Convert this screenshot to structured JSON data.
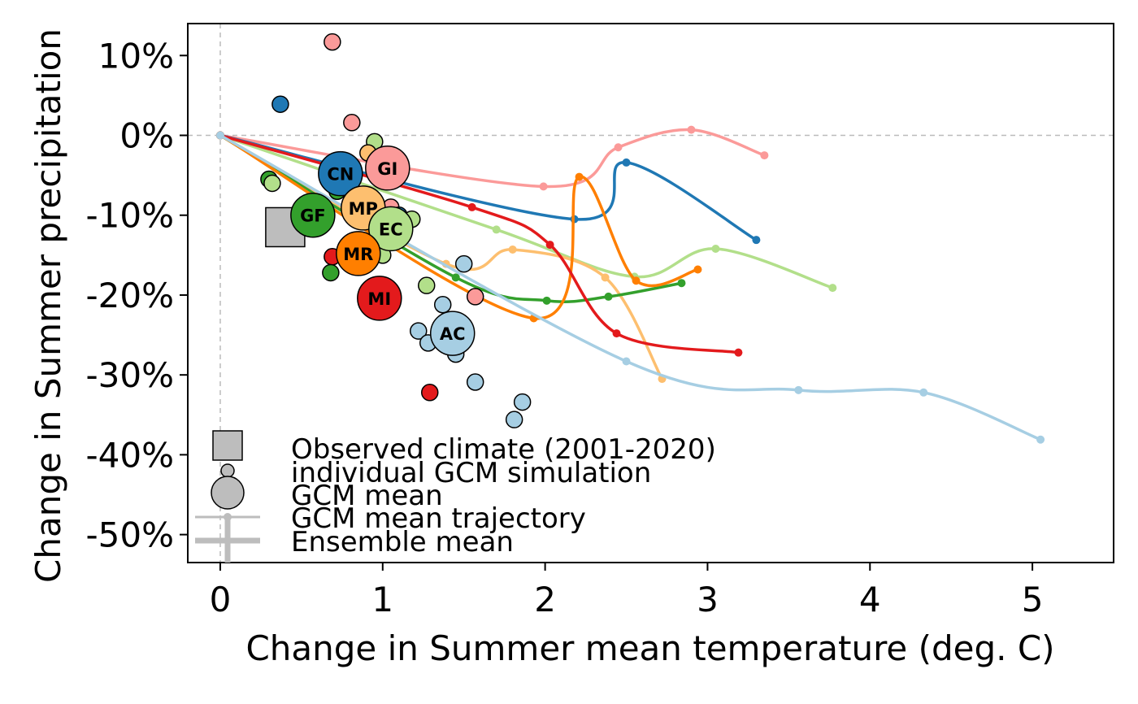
{
  "chart_data": {
    "type": "scatter",
    "xlabel": "Change in Summer mean temperature (deg. C)",
    "ylabel": "Change in Summer precipitation",
    "xlim": [
      -0.2,
      5.5
    ],
    "ylim": [
      -0.535,
      0.14
    ],
    "x_ticks": [
      0,
      1,
      2,
      3,
      4,
      5
    ],
    "x_tick_labels": [
      "0",
      "1",
      "2",
      "3",
      "4",
      "5"
    ],
    "y_ticks": [
      0.1,
      0,
      -0.1,
      -0.2,
      -0.3,
      -0.4,
      -0.5
    ],
    "y_tick_labels": [
      "10%",
      "0%",
      "-10%",
      "-20%",
      "-30%",
      "-40%",
      "-50%"
    ],
    "reference_lines": {
      "x": 0,
      "y": 0,
      "style": "dashed",
      "color": "#bbbbbb"
    },
    "observed": {
      "x": 0.4,
      "y": -0.115,
      "color": "#bdbdbd"
    },
    "individual_simulations": [
      {
        "x": 0.69,
        "y": 0.117,
        "color": "#fb9a99"
      },
      {
        "x": 0.37,
        "y": 0.039,
        "color": "#1f78b4"
      },
      {
        "x": 0.81,
        "y": 0.016,
        "color": "#fb9a99"
      },
      {
        "x": 0.95,
        "y": -0.008,
        "color": "#b2df8a"
      },
      {
        "x": 0.91,
        "y": -0.022,
        "color": "#fdbf6f"
      },
      {
        "x": 0.3,
        "y": -0.055,
        "color": "#33a02c"
      },
      {
        "x": 0.32,
        "y": -0.06,
        "color": "#b2df8a"
      },
      {
        "x": 0.72,
        "y": -0.07,
        "color": "#33a02c"
      },
      {
        "x": 1.05,
        "y": -0.09,
        "color": "#fb9a99"
      },
      {
        "x": 1.1,
        "y": -0.1,
        "color": "#1f78b4"
      },
      {
        "x": 1.18,
        "y": -0.105,
        "color": "#b2df8a"
      },
      {
        "x": 0.69,
        "y": -0.152,
        "color": "#e31a1c"
      },
      {
        "x": 1.0,
        "y": -0.15,
        "color": "#b2df8a"
      },
      {
        "x": 0.68,
        "y": -0.172,
        "color": "#33a02c"
      },
      {
        "x": 1.5,
        "y": -0.161,
        "color": "#a6cee3"
      },
      {
        "x": 1.27,
        "y": -0.188,
        "color": "#b2df8a"
      },
      {
        "x": 1.57,
        "y": -0.202,
        "color": "#fb9a99"
      },
      {
        "x": 1.37,
        "y": -0.212,
        "color": "#a6cee3"
      },
      {
        "x": 1.22,
        "y": -0.245,
        "color": "#a6cee3"
      },
      {
        "x": 1.28,
        "y": -0.26,
        "color": "#a6cee3"
      },
      {
        "x": 1.45,
        "y": -0.274,
        "color": "#a6cee3"
      },
      {
        "x": 1.57,
        "y": -0.309,
        "color": "#a6cee3"
      },
      {
        "x": 1.29,
        "y": -0.322,
        "color": "#e31a1c"
      },
      {
        "x": 1.86,
        "y": -0.334,
        "color": "#a6cee3"
      },
      {
        "x": 1.81,
        "y": -0.356,
        "color": "#a6cee3"
      }
    ],
    "gcm_means": [
      {
        "label": "CN",
        "x": 0.74,
        "y": -0.048,
        "color": "#1f78b4"
      },
      {
        "label": "GI",
        "x": 1.03,
        "y": -0.041,
        "color": "#fb9a99"
      },
      {
        "label": "MP",
        "x": 0.88,
        "y": -0.091,
        "color": "#fdbf6f"
      },
      {
        "label": "GF",
        "x": 0.57,
        "y": -0.1,
        "color": "#33a02c"
      },
      {
        "label": "EC",
        "x": 1.05,
        "y": -0.117,
        "color": "#b2df8a"
      },
      {
        "label": "MR",
        "x": 0.85,
        "y": -0.148,
        "color": "#ff7f00"
      },
      {
        "label": "MI",
        "x": 0.98,
        "y": -0.204,
        "color": "#e31a1c"
      },
      {
        "label": "AC",
        "x": 1.43,
        "y": -0.248,
        "color": "#a6cee3"
      }
    ],
    "trajectories": [
      {
        "gcm": "GI",
        "color": "#fb9a99",
        "x": [
          0,
          1.99,
          2.45,
          2.9,
          3.35
        ],
        "y": [
          0,
          -0.064,
          -0.015,
          0.007,
          -0.025
        ]
      },
      {
        "gcm": "CN",
        "color": "#1f78b4",
        "x": [
          0,
          2.18,
          2.5,
          3.3
        ],
        "y": [
          0,
          -0.105,
          -0.034,
          -0.131
        ]
      },
      {
        "gcm": "EC",
        "color": "#b2df8a",
        "x": [
          0,
          1.7,
          2.55,
          3.05,
          3.77
        ],
        "y": [
          0,
          -0.118,
          -0.177,
          -0.142,
          -0.191
        ]
      },
      {
        "gcm": "MP",
        "color": "#fdbf6f",
        "x": [
          0,
          1.39,
          1.8,
          2.37,
          2.72
        ],
        "y": [
          0,
          -0.161,
          -0.143,
          -0.178,
          -0.305
        ]
      },
      {
        "gcm": "GF",
        "color": "#33a02c",
        "x": [
          0,
          1.45,
          2.01,
          2.39,
          2.84
        ],
        "y": [
          0,
          -0.178,
          -0.207,
          -0.202,
          -0.185
        ]
      },
      {
        "gcm": "MR",
        "color": "#ff7f00",
        "x": [
          0,
          1.93,
          2.21,
          2.56,
          2.94
        ],
        "y": [
          0,
          -0.229,
          -0.052,
          -0.182,
          -0.168
        ]
      },
      {
        "gcm": "MI",
        "color": "#e31a1c",
        "x": [
          0,
          1.55,
          2.03,
          2.44,
          3.19
        ],
        "y": [
          0,
          -0.09,
          -0.137,
          -0.248,
          -0.272
        ]
      },
      {
        "gcm": "AC",
        "color": "#a6cee3",
        "x": [
          0,
          2.5,
          3.56,
          4.33,
          5.05
        ],
        "y": [
          0,
          -0.283,
          -0.319,
          -0.322,
          -0.381
        ]
      }
    ],
    "legend": {
      "placement": "bottom-left",
      "entries": [
        "Observed climate (2001-2020)",
        "individual GCM simulation",
        "GCM mean",
        "GCM mean trajectory",
        "Ensemble mean"
      ]
    }
  }
}
